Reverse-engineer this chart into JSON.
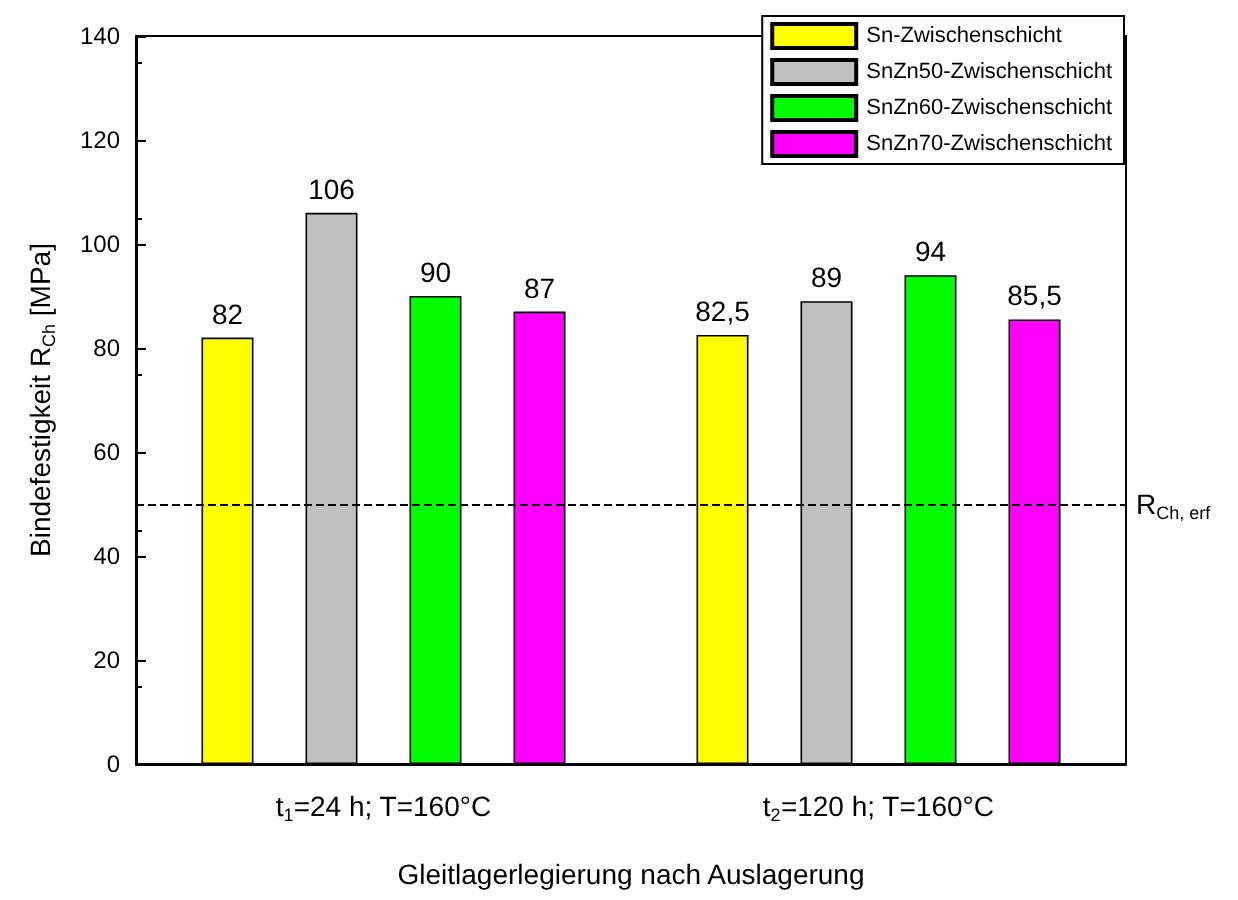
{
  "chart_data": {
    "type": "bar",
    "xlabel": "Gleitlagerlegierung nach Auslagerung",
    "ylabel": "Bindefestigkeit R$_{Ch}$ [MPa]",
    "categories": [
      "t$_{1}$=24 h; T=160°C",
      "t$_{2}$=120 h; T=160°C"
    ],
    "series": [
      {
        "name": "Sn-Zwischenschicht",
        "color": "#ffff00",
        "values": [
          82,
          82.5
        ],
        "value_labels": [
          "82",
          "82,5"
        ]
      },
      {
        "name": "SnZn50-Zwischenschicht",
        "color": "#c0c0c0",
        "values": [
          106,
          89
        ],
        "value_labels": [
          "106",
          "89"
        ]
      },
      {
        "name": "SnZn60-Zwischenschicht",
        "color": "#00ff00",
        "values": [
          90,
          94
        ],
        "value_labels": [
          "90",
          "94"
        ]
      },
      {
        "name": "SnZn70-Zwischenschicht",
        "color": "#ff00ff",
        "values": [
          87,
          85.5
        ],
        "value_labels": [
          "87",
          "85,5"
        ]
      }
    ],
    "ylim": [
      0,
      140
    ],
    "yticks": [
      0,
      20,
      40,
      60,
      80,
      100,
      120,
      140
    ],
    "ref_lines": [
      {
        "axis": "y",
        "value": 50,
        "label": "R$_{Ch, erf}$",
        "color": "#000000",
        "line_style": "dashed"
      }
    ],
    "legend": "top right",
    "grid": false
  }
}
